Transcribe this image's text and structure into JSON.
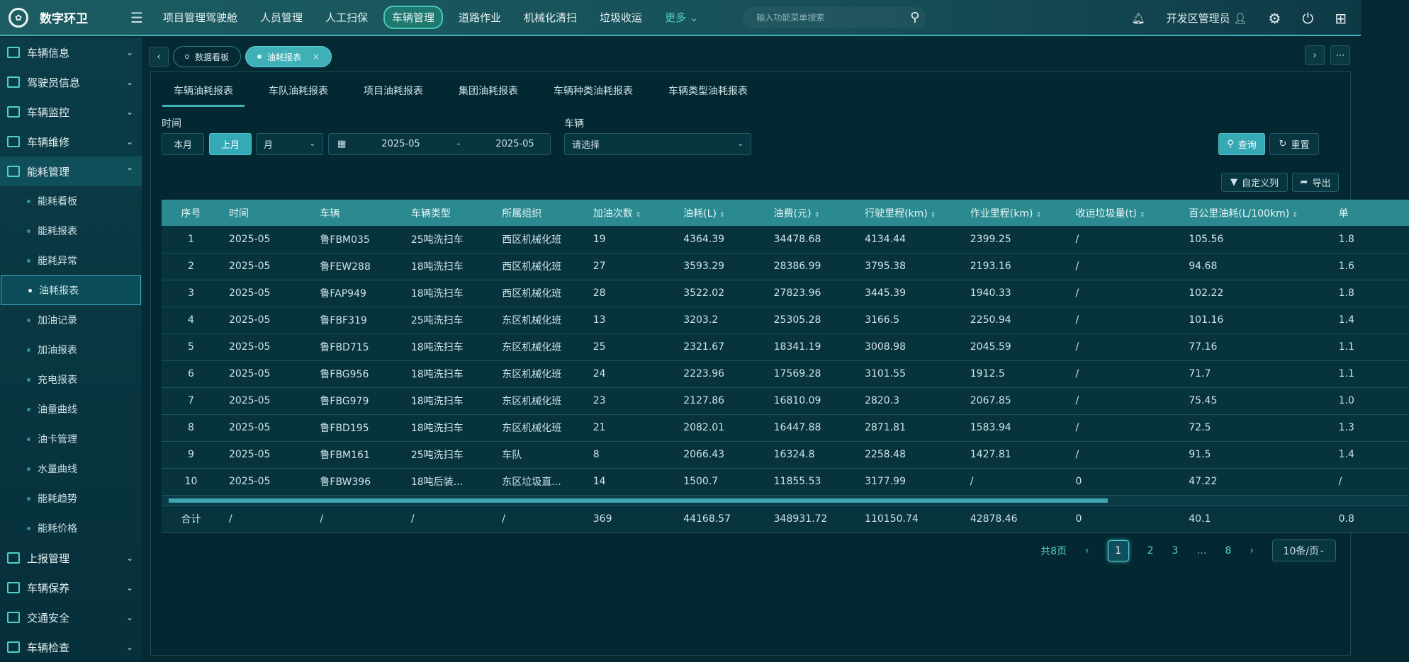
{
  "header": {
    "app_title": "数字环卫",
    "nav": [
      "项目管理驾驶舱",
      "人员管理",
      "人工扫保",
      "车辆管理",
      "道路作业",
      "机械化清扫",
      "垃圾收运"
    ],
    "nav_active": "车辆管理",
    "more": "更多",
    "search_placeholder": "输入功能菜单搜索",
    "user": "开发区管理员"
  },
  "sidebar": {
    "groups_top": [
      "车辆信息",
      "驾驶员信息",
      "车辆监控",
      "车辆维修"
    ],
    "open_group": "能耗管理",
    "sub_items": [
      "能耗看板",
      "能耗报表",
      "能耗异常",
      "油耗报表",
      "加油记录",
      "加油报表",
      "充电报表",
      "油量曲线",
      "油卡管理",
      "水量曲线",
      "能耗趋势",
      "能耗价格"
    ],
    "active_sub": "油耗报表",
    "groups_bottom": [
      "上报管理",
      "车辆保养",
      "交通安全",
      "车辆检查"
    ]
  },
  "tabs": [
    {
      "label": "数据看板",
      "active": false
    },
    {
      "label": "油耗报表",
      "active": true,
      "close": "×"
    }
  ],
  "subtabs": [
    "车辆油耗报表",
    "车队油耗报表",
    "项目油耗报表",
    "集团油耗报表",
    "车辆种类油耗报表",
    "车辆类型油耗报表"
  ],
  "filters": {
    "time_label": "时间",
    "this_month": "本月",
    "last_month": "上月",
    "period": "月",
    "date_start": "2025-05",
    "date_sep": "-",
    "date_end": "2025-05",
    "vehicle_label": "车辆",
    "vehicle_placeholder": "请选择",
    "query": "查询",
    "reset": "重置",
    "custom_columns": "自定义列",
    "export": "导出"
  },
  "table": {
    "columns": [
      "序号",
      "时间",
      "车辆",
      "车辆类型",
      "所属组织",
      "加油次数",
      "油耗(L)",
      "油费(元)",
      "行驶里程(km)",
      "作业里程(km)",
      "收运垃圾量(t)",
      "百公里油耗(L/100km)",
      "单"
    ],
    "rows": [
      [
        "1",
        "2025-05",
        "鲁FBM035",
        "25吨洗扫车",
        "西区机械化班",
        "19",
        "4364.39",
        "34478.68",
        "4134.44",
        "2399.25",
        "/",
        "105.56",
        "1.8"
      ],
      [
        "2",
        "2025-05",
        "鲁FEW288",
        "18吨洗扫车",
        "西区机械化班",
        "27",
        "3593.29",
        "28386.99",
        "3795.38",
        "2193.16",
        "/",
        "94.68",
        "1.6"
      ],
      [
        "3",
        "2025-05",
        "鲁FAP949",
        "18吨洗扫车",
        "西区机械化班",
        "28",
        "3522.02",
        "27823.96",
        "3445.39",
        "1940.33",
        "/",
        "102.22",
        "1.8"
      ],
      [
        "4",
        "2025-05",
        "鲁FBF319",
        "25吨洗扫车",
        "东区机械化班",
        "13",
        "3203.2",
        "25305.28",
        "3166.5",
        "2250.94",
        "/",
        "101.16",
        "1.4"
      ],
      [
        "5",
        "2025-05",
        "鲁FBD715",
        "18吨洗扫车",
        "东区机械化班",
        "25",
        "2321.67",
        "18341.19",
        "3008.98",
        "2045.59",
        "/",
        "77.16",
        "1.1"
      ],
      [
        "6",
        "2025-05",
        "鲁FBG956",
        "18吨洗扫车",
        "东区机械化班",
        "24",
        "2223.96",
        "17569.28",
        "3101.55",
        "1912.5",
        "/",
        "71.7",
        "1.1"
      ],
      [
        "7",
        "2025-05",
        "鲁FBG979",
        "18吨洗扫车",
        "东区机械化班",
        "23",
        "2127.86",
        "16810.09",
        "2820.3",
        "2067.85",
        "/",
        "75.45",
        "1.0"
      ],
      [
        "8",
        "2025-05",
        "鲁FBD195",
        "18吨洗扫车",
        "东区机械化班",
        "21",
        "2082.01",
        "16447.88",
        "2871.81",
        "1583.94",
        "/",
        "72.5",
        "1.3"
      ],
      [
        "9",
        "2025-05",
        "鲁FBM161",
        "25吨洗扫车",
        "车队",
        "8",
        "2066.43",
        "16324.8",
        "2258.48",
        "1427.81",
        "/",
        "91.5",
        "1.4"
      ],
      [
        "10",
        "2025-05",
        "鲁FBW396",
        "18吨后装...",
        "东区垃圾直...",
        "14",
        "1500.7",
        "11855.53",
        "3177.99",
        "/",
        "0",
        "47.22",
        "/"
      ]
    ],
    "total": [
      "合计",
      "/",
      "/",
      "/",
      "/",
      "369",
      "44168.57",
      "348931.72",
      "110150.74",
      "42878.46",
      "0",
      "40.1",
      "0.8"
    ]
  },
  "pagination": {
    "total_pages": "共8页",
    "pages": [
      "1",
      "2",
      "3",
      "…",
      "8"
    ],
    "current": "1",
    "page_size": "10条/页"
  }
}
